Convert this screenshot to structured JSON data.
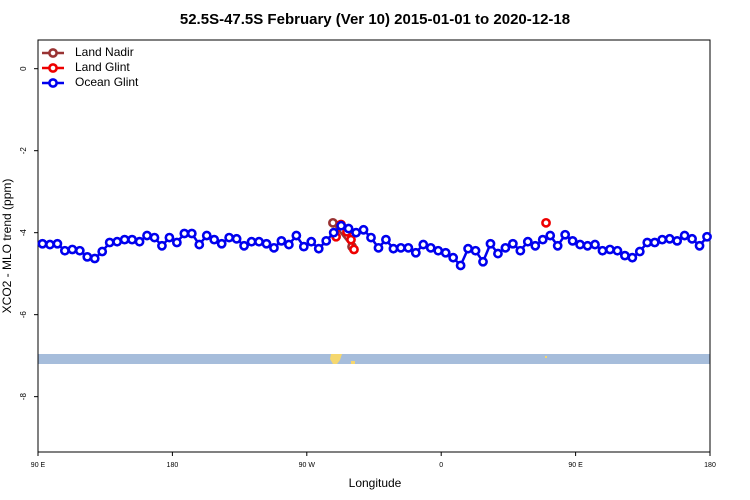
{
  "chart_data": {
    "type": "line",
    "title": "52.5S-47.5S February (Ver 10)   2015-01-01 to 2020-12-18",
    "xlabel": "Longitude",
    "ylabel": "XCO2 - MLO trend (ppm)",
    "xlim": [
      90,
      540
    ],
    "ylim": [
      -9.35,
      0.7
    ],
    "xticks": [
      {
        "value": 90,
        "label": "90 E"
      },
      180,
      {
        "value": 270,
        "label": "90 W"
      },
      {
        "value": 360,
        "label": "0"
      },
      {
        "value": 450,
        "label": "90 E"
      },
      {
        "value": 540,
        "label": "180"
      }
    ],
    "yticks": [
      0,
      -2,
      -4,
      -6,
      -8
    ],
    "legend": "top-left",
    "series": [
      {
        "name": "Land Nadir",
        "color": "#993333",
        "x": [
          287.5,
          300.3
        ],
        "values": [
          -3.76,
          -4.34
        ]
      },
      {
        "name": "Land Glint",
        "color": "#ee0000",
        "x": [
          289.6,
          292.9,
          296.9,
          299.6,
          301.6,
          null,
          430.2
        ],
        "values": [
          -4.1,
          -3.8,
          -3.98,
          -4.17,
          -4.41,
          null,
          -3.76
        ]
      },
      {
        "name": "Ocean Glint",
        "color": "#0000ee",
        "x": [
          93,
          98,
          103,
          108,
          113,
          118,
          123,
          128,
          133,
          138,
          143,
          148,
          153,
          158,
          163,
          168,
          173,
          178,
          183,
          188,
          193,
          198,
          203,
          208,
          213,
          218,
          223,
          228,
          233,
          238,
          243,
          248,
          253,
          258,
          263,
          268,
          273,
          278,
          283,
          288,
          293,
          298,
          303,
          308,
          313,
          318,
          323,
          328,
          333,
          338,
          343,
          348,
          353,
          358,
          363,
          368,
          373,
          378,
          383,
          388,
          393,
          398,
          403,
          408,
          413,
          418,
          423,
          428,
          433,
          438,
          443,
          448,
          453,
          458,
          463,
          468,
          473,
          478,
          483,
          488,
          493,
          498,
          503,
          508,
          513,
          518,
          523,
          528,
          533,
          538
        ],
        "values": [
          -4.27,
          -4.29,
          -4.27,
          -4.44,
          -4.41,
          -4.44,
          -4.59,
          -4.63,
          -4.46,
          -4.24,
          -4.22,
          -4.17,
          -4.17,
          -4.22,
          -4.07,
          -4.12,
          -4.32,
          -4.12,
          -4.24,
          -4.02,
          -4.02,
          -4.29,
          -4.07,
          -4.17,
          -4.27,
          -4.12,
          -4.15,
          -4.32,
          -4.22,
          -4.22,
          -4.27,
          -4.37,
          -4.2,
          -4.29,
          -4.07,
          -4.34,
          -4.22,
          -4.39,
          -4.2,
          -4.0,
          -3.83,
          -3.9,
          -4.0,
          -3.93,
          -4.12,
          -4.37,
          -4.17,
          -4.39,
          -4.37,
          -4.37,
          -4.49,
          -4.29,
          -4.37,
          -4.44,
          -4.49,
          -4.61,
          -4.8,
          -4.39,
          -4.44,
          -4.71,
          -4.27,
          -4.51,
          -4.37,
          -4.27,
          -4.44,
          -4.22,
          -4.32,
          -4.17,
          -4.07,
          -4.32,
          -4.05,
          -4.2,
          -4.29,
          -4.32,
          -4.29,
          -4.44,
          -4.41,
          -4.44,
          -4.56,
          -4.61,
          -4.46,
          -4.24,
          -4.24,
          -4.17,
          -4.15,
          -4.2,
          -4.07,
          -4.15,
          -4.32,
          -4.1
        ]
      }
    ]
  }
}
